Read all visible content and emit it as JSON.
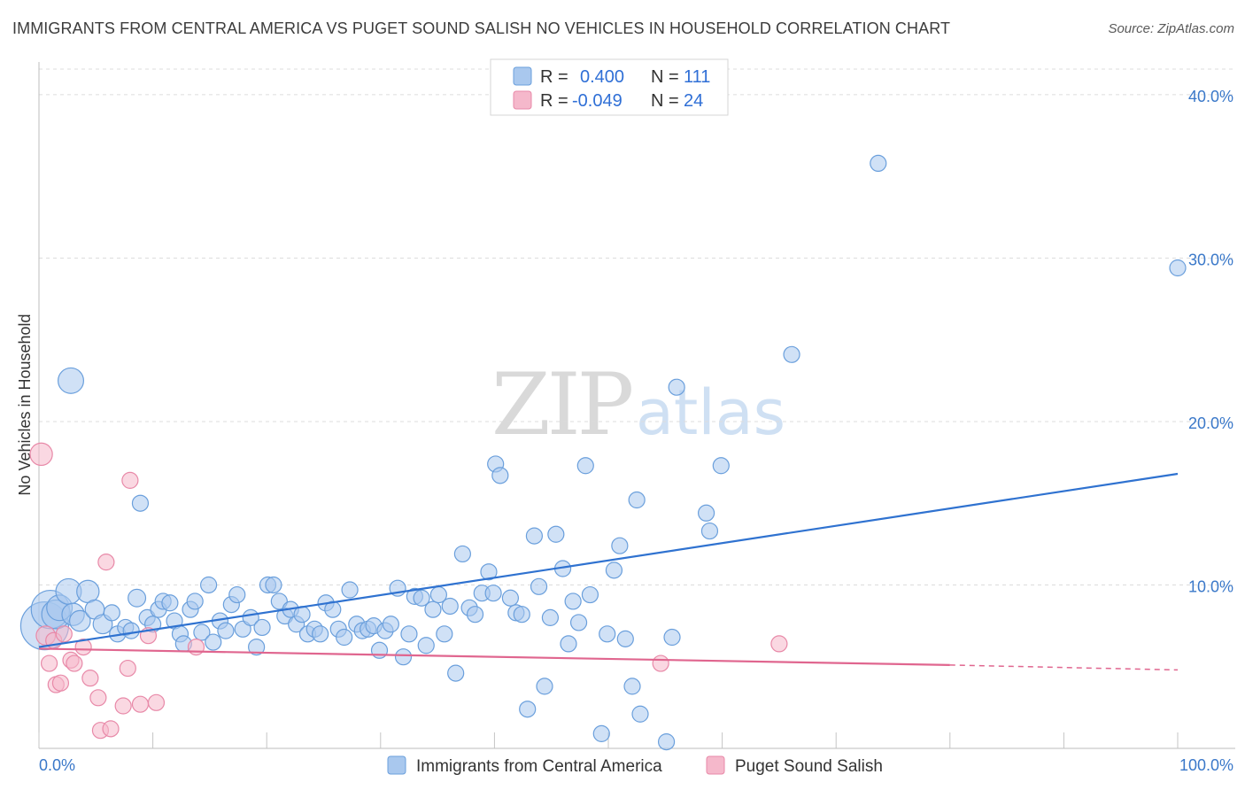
{
  "title": "IMMIGRANTS FROM CENTRAL AMERICA VS PUGET SOUND SALISH NO VEHICLES IN HOUSEHOLD CORRELATION CHART",
  "source": "Source: ZipAtlas.com",
  "watermark": {
    "part1": "ZIP",
    "part2": "atlas"
  },
  "legend_top": {
    "rows": [
      {
        "r_label": "R =",
        "r_value": "0.400",
        "n_label": "N =",
        "n_value": "111"
      },
      {
        "r_label": "R =",
        "r_value": "-0.049",
        "n_label": "N =",
        "n_value": "24"
      }
    ]
  },
  "colors": {
    "blue_fill": "#a9c8ee",
    "blue_stroke": "#6a9fdc",
    "blue_line": "#2f72d0",
    "pink_fill": "#f5b8cb",
    "pink_stroke": "#e889a8",
    "pink_line": "#e0668f",
    "grid": "#dcdcdc",
    "tick_text": "#3a78c9"
  },
  "chart_data": {
    "type": "scatter",
    "title": "IMMIGRANTS FROM CENTRAL AMERICA VS PUGET SOUND SALISH NO VEHICLES IN HOUSEHOLD CORRELATION CHART",
    "xlabel": "",
    "ylabel": "No Vehicles in Household",
    "xlim": [
      0,
      100
    ],
    "ylim": [
      0,
      42
    ],
    "x_tick_labels": [
      "0.0%",
      "100.0%"
    ],
    "y_ticks": [
      10,
      20,
      30,
      40
    ],
    "y_tick_labels": [
      "10.0%",
      "20.0%",
      "30.0%",
      "40.0%"
    ],
    "grid": true,
    "legend_position": "top-center",
    "series": [
      {
        "name": "Immigrants from Central America",
        "color": "#a9c8ee",
        "R": 0.4,
        "N": 111,
        "trend": {
          "x": [
            0,
            100
          ],
          "y": [
            6.2,
            16.8
          ]
        },
        "points": [
          [
            0.5,
            7.5,
            30
          ],
          [
            1.0,
            8.5,
            24
          ],
          [
            1.5,
            8.2,
            18
          ],
          [
            2.8,
            22.5,
            16
          ],
          [
            1.8,
            8.6,
            16
          ],
          [
            2.6,
            9.6,
            16
          ],
          [
            3.0,
            8.2,
            14
          ],
          [
            3.6,
            7.8,
            13
          ],
          [
            4.3,
            9.6,
            14
          ],
          [
            4.9,
            8.5,
            12
          ],
          [
            5.6,
            7.6,
            12
          ],
          [
            6.4,
            8.3,
            10
          ],
          [
            6.9,
            7.0,
            10
          ],
          [
            7.6,
            7.4,
            10
          ],
          [
            8.1,
            7.2,
            10
          ],
          [
            8.6,
            9.2,
            11
          ],
          [
            8.9,
            15.0,
            10
          ],
          [
            9.5,
            8.0,
            10
          ],
          [
            10.0,
            7.6,
            10
          ],
          [
            10.5,
            8.5,
            10
          ],
          [
            10.9,
            9.0,
            10
          ],
          [
            11.5,
            8.9,
            10
          ],
          [
            11.9,
            7.8,
            10
          ],
          [
            12.4,
            7.0,
            10
          ],
          [
            12.7,
            6.4,
            10
          ],
          [
            13.3,
            8.5,
            10
          ],
          [
            13.7,
            9.0,
            10
          ],
          [
            14.3,
            7.1,
            10
          ],
          [
            14.9,
            10.0,
            10
          ],
          [
            15.3,
            6.5,
            10
          ],
          [
            15.9,
            7.8,
            10
          ],
          [
            16.4,
            7.2,
            10
          ],
          [
            16.9,
            8.8,
            10
          ],
          [
            17.4,
            9.4,
            10
          ],
          [
            17.9,
            7.3,
            10
          ],
          [
            18.6,
            8.0,
            10
          ],
          [
            19.1,
            6.2,
            10
          ],
          [
            19.6,
            7.4,
            10
          ],
          [
            20.1,
            10.0,
            10
          ],
          [
            20.6,
            10.0,
            10
          ],
          [
            21.1,
            9.0,
            10
          ],
          [
            21.6,
            8.1,
            10
          ],
          [
            22.1,
            8.5,
            10
          ],
          [
            22.6,
            7.6,
            10
          ],
          [
            23.1,
            8.2,
            10
          ],
          [
            23.6,
            7.0,
            10
          ],
          [
            24.2,
            7.3,
            10
          ],
          [
            24.7,
            7.0,
            10
          ],
          [
            25.2,
            8.9,
            10
          ],
          [
            25.8,
            8.5,
            10
          ],
          [
            26.3,
            7.3,
            10
          ],
          [
            26.8,
            6.8,
            10
          ],
          [
            27.3,
            9.7,
            10
          ],
          [
            27.9,
            7.6,
            10
          ],
          [
            28.4,
            7.2,
            10
          ],
          [
            28.9,
            7.3,
            10
          ],
          [
            29.4,
            7.5,
            10
          ],
          [
            29.9,
            6.0,
            10
          ],
          [
            30.4,
            7.2,
            10
          ],
          [
            30.9,
            7.6,
            10
          ],
          [
            31.5,
            9.8,
            10
          ],
          [
            32.0,
            5.6,
            10
          ],
          [
            32.5,
            7.0,
            10
          ],
          [
            33.0,
            9.3,
            10
          ],
          [
            33.6,
            9.2,
            10
          ],
          [
            34.0,
            6.3,
            10
          ],
          [
            34.6,
            8.5,
            10
          ],
          [
            35.1,
            9.4,
            10
          ],
          [
            35.6,
            7.0,
            10
          ],
          [
            36.1,
            8.7,
            10
          ],
          [
            36.6,
            4.6,
            10
          ],
          [
            37.2,
            11.9,
            10
          ],
          [
            37.8,
            8.6,
            10
          ],
          [
            38.3,
            8.2,
            10
          ],
          [
            38.9,
            9.5,
            10
          ],
          [
            39.5,
            10.8,
            10
          ],
          [
            39.9,
            9.5,
            10
          ],
          [
            40.1,
            17.4,
            10
          ],
          [
            40.5,
            16.7,
            10
          ],
          [
            41.4,
            9.2,
            10
          ],
          [
            41.9,
            8.3,
            10
          ],
          [
            42.4,
            8.2,
            10
          ],
          [
            42.9,
            2.4,
            10
          ],
          [
            43.5,
            13.0,
            10
          ],
          [
            43.9,
            9.9,
            10
          ],
          [
            44.4,
            3.8,
            10
          ],
          [
            44.9,
            8.0,
            10
          ],
          [
            45.4,
            13.1,
            10
          ],
          [
            46.0,
            11.0,
            10
          ],
          [
            46.5,
            6.4,
            10
          ],
          [
            46.9,
            9.0,
            10
          ],
          [
            47.4,
            7.7,
            10
          ],
          [
            48.0,
            17.3,
            10
          ],
          [
            48.4,
            9.4,
            10
          ],
          [
            49.4,
            0.9,
            10
          ],
          [
            49.9,
            7.0,
            10
          ],
          [
            50.5,
            10.9,
            10
          ],
          [
            51.0,
            12.4,
            10
          ],
          [
            51.5,
            6.7,
            10
          ],
          [
            52.1,
            3.8,
            10
          ],
          [
            52.5,
            15.2,
            10
          ],
          [
            52.8,
            2.1,
            10
          ],
          [
            55.1,
            0.4,
            10
          ],
          [
            55.6,
            6.8,
            10
          ],
          [
            56.0,
            22.1,
            10
          ],
          [
            58.6,
            14.4,
            10
          ],
          [
            58.9,
            13.3,
            10
          ],
          [
            59.9,
            17.3,
            10
          ],
          [
            66.1,
            24.1,
            10
          ],
          [
            73.7,
            35.8,
            10
          ],
          [
            100.0,
            29.4,
            10
          ]
        ]
      },
      {
        "name": "Puget Sound Salish",
        "color": "#f5b8cb",
        "R": -0.049,
        "N": 24,
        "trend": {
          "x": [
            0,
            80,
            100
          ],
          "y": [
            6.1,
            5.1,
            4.8
          ],
          "dashed_after_x": 80
        },
        "points": [
          [
            0.2,
            18.0,
            14
          ],
          [
            0.6,
            6.9,
            12
          ],
          [
            0.9,
            5.2,
            10
          ],
          [
            1.3,
            6.6,
            10
          ],
          [
            1.5,
            3.9,
            10
          ],
          [
            1.9,
            4.0,
            10
          ],
          [
            2.2,
            7.0,
            10
          ],
          [
            2.8,
            5.4,
            10
          ],
          [
            3.1,
            5.2,
            10
          ],
          [
            3.9,
            6.2,
            10
          ],
          [
            4.5,
            4.3,
            10
          ],
          [
            5.2,
            3.1,
            10
          ],
          [
            5.4,
            1.1,
            10
          ],
          [
            5.9,
            11.4,
            10
          ],
          [
            6.3,
            1.2,
            10
          ],
          [
            7.4,
            2.6,
            10
          ],
          [
            7.8,
            4.9,
            10
          ],
          [
            8.0,
            16.4,
            10
          ],
          [
            8.9,
            2.7,
            10
          ],
          [
            9.6,
            6.9,
            10
          ],
          [
            10.3,
            2.8,
            10
          ],
          [
            13.8,
            6.2,
            10
          ],
          [
            54.6,
            5.2,
            10
          ],
          [
            65.0,
            6.4,
            10
          ]
        ]
      }
    ]
  },
  "bottom_legend": [
    {
      "label": "Immigrants from Central America"
    },
    {
      "label": "Puget Sound Salish"
    }
  ]
}
